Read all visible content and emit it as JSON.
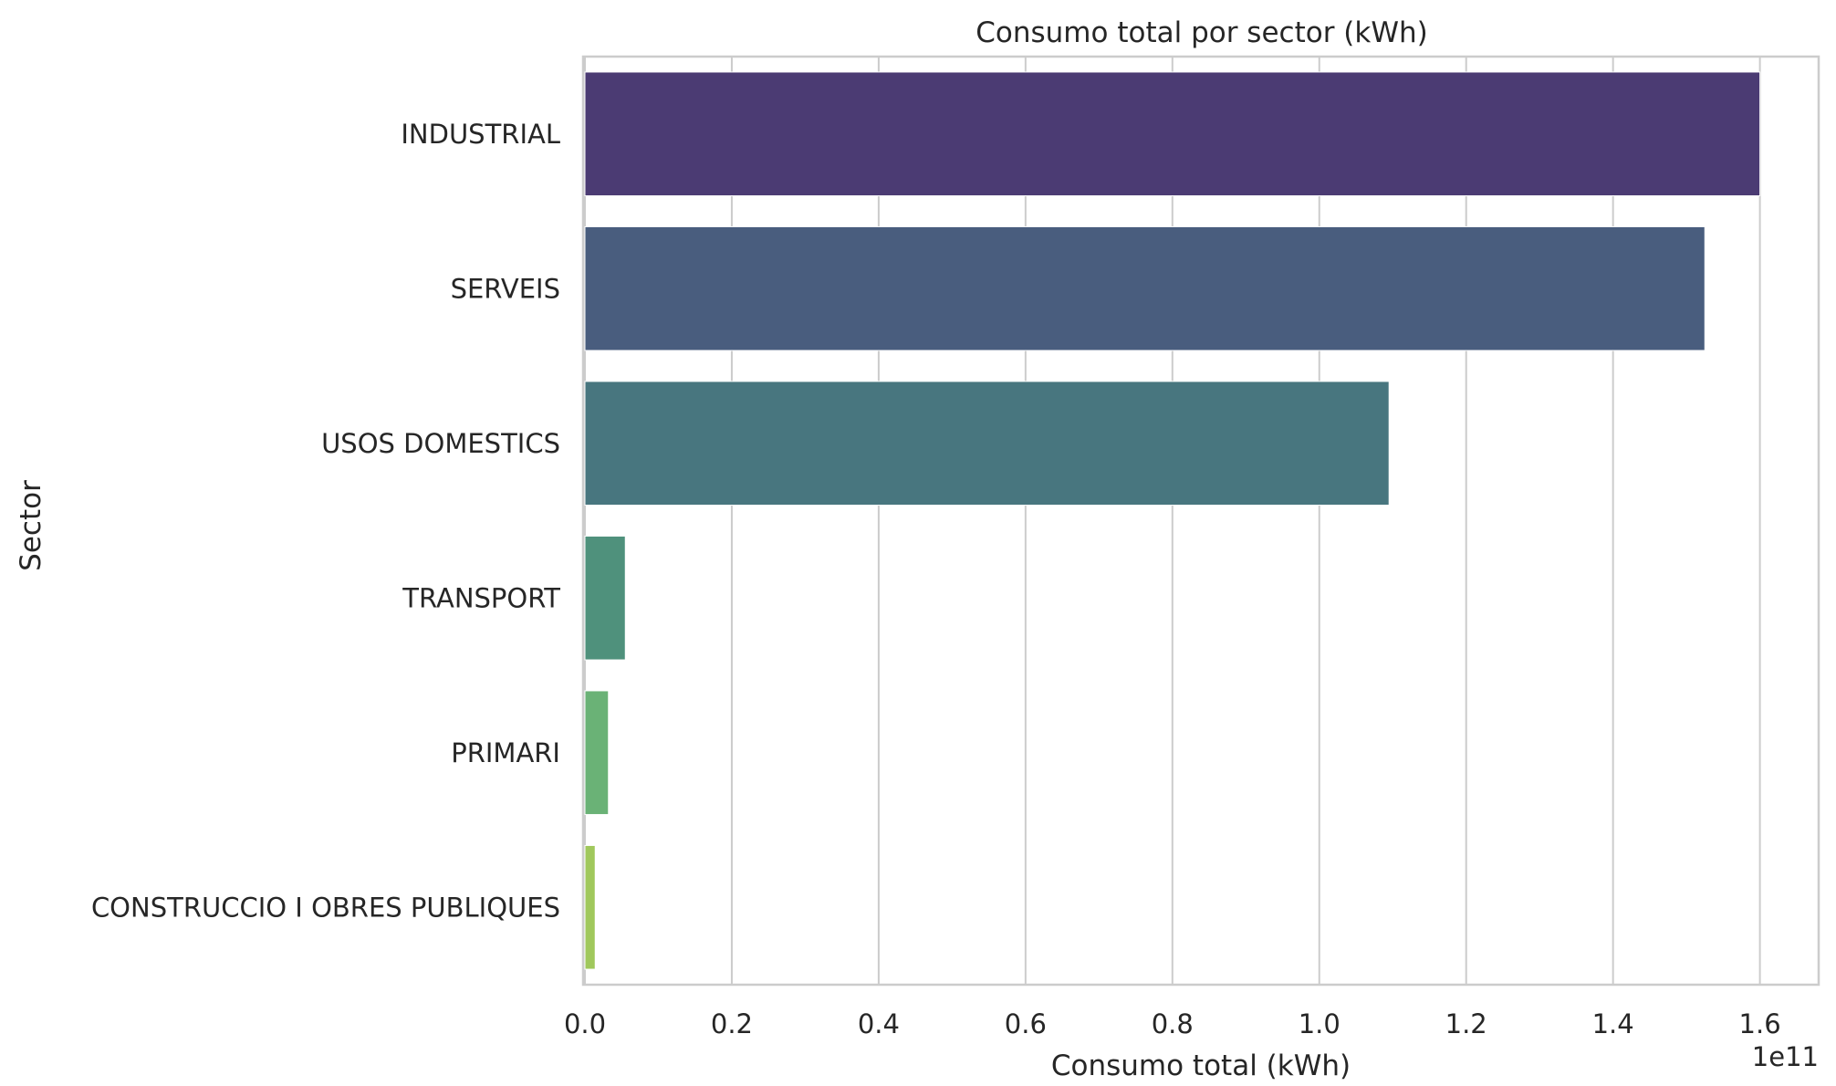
{
  "chart_data": {
    "type": "bar",
    "orientation": "horizontal",
    "title": "Consumo total por sector (kWh)",
    "xlabel": "Consumo total (kWh)",
    "ylabel": "Sector",
    "offset_text": "1e11",
    "xlim": [
      0,
      1.68
    ],
    "x_ticks": [
      0.0,
      0.2,
      0.4,
      0.6,
      0.8,
      1.0,
      1.2,
      1.4,
      1.6
    ],
    "x_tick_labels": [
      "0.0",
      "0.2",
      "0.4",
      "0.6",
      "0.8",
      "1.0",
      "1.2",
      "1.4",
      "1.6"
    ],
    "grid": "vertical",
    "categories": [
      "INDUSTRIAL",
      "SERVEIS",
      "USOS DOMESTICS",
      "TRANSPORT",
      "PRIMARI",
      "CONSTRUCCIO I OBRES PUBLIQUES"
    ],
    "values": [
      1.6,
      1.525,
      1.095,
      0.055,
      0.032,
      0.014
    ],
    "colors": [
      "#4b3b73",
      "#495d7e",
      "#48767f",
      "#4f917c",
      "#6ab276",
      "#a0c85c"
    ]
  }
}
